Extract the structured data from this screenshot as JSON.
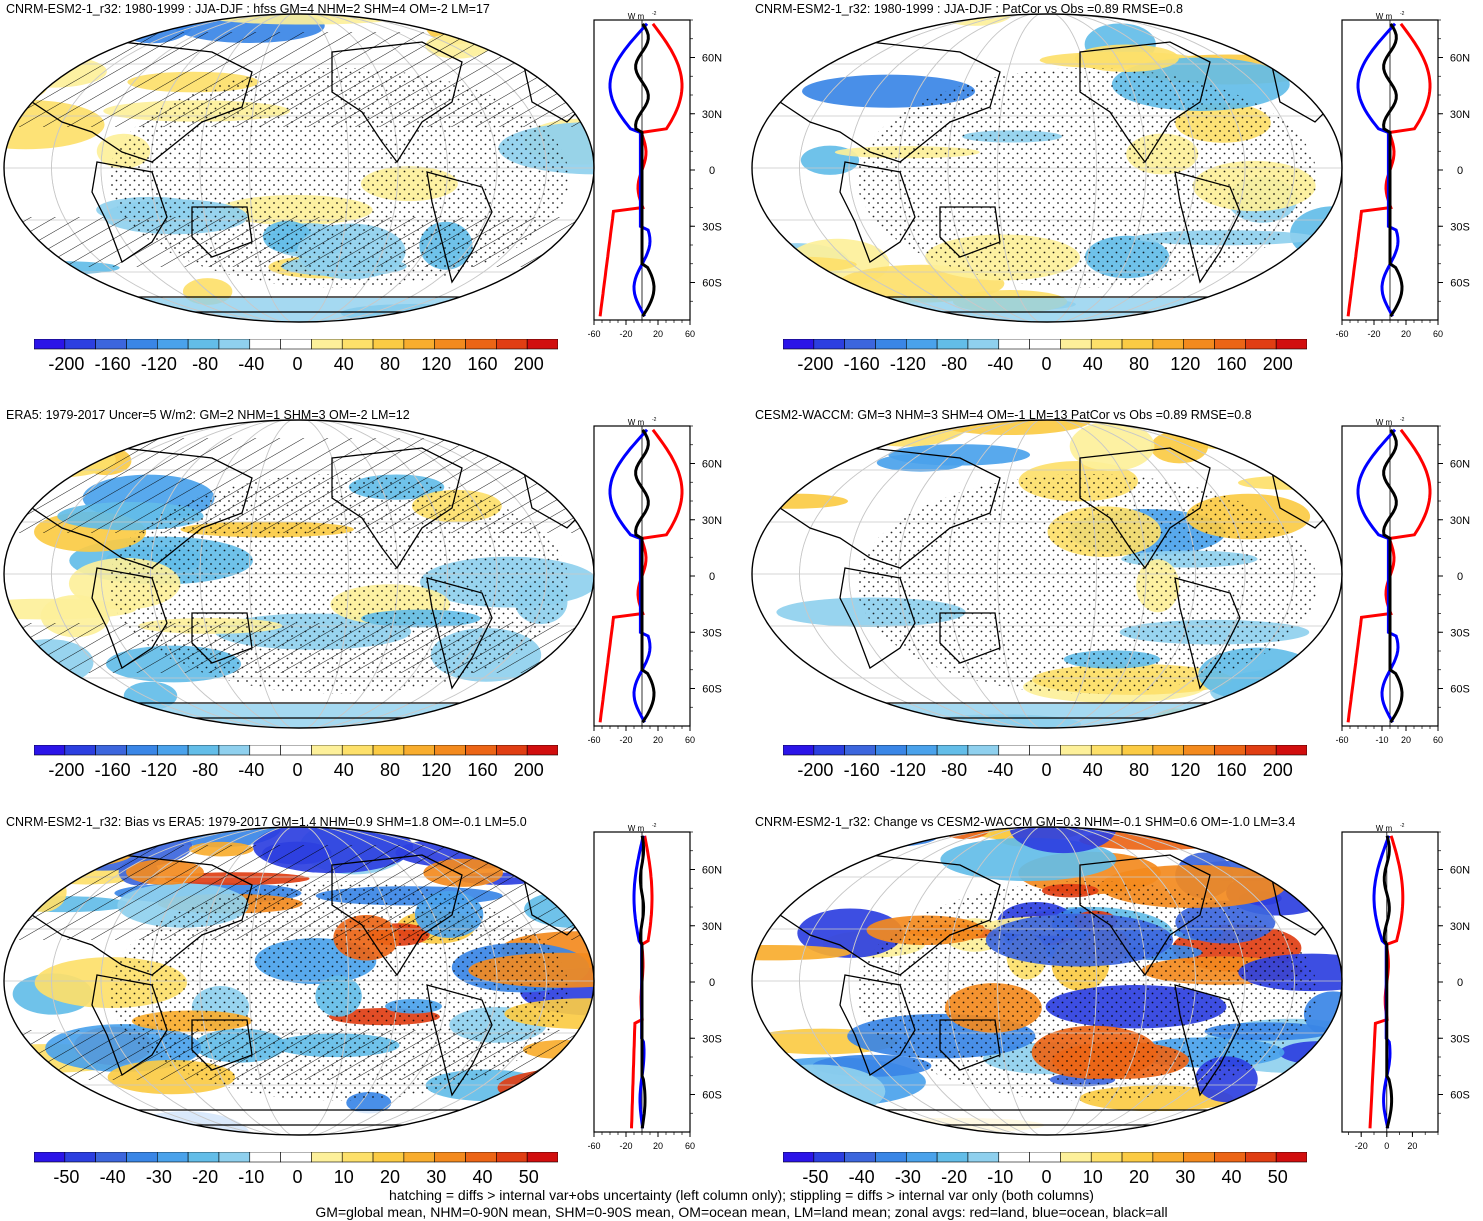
{
  "panels": [
    {
      "title": "CNRM-ESM2-1_r32: 1980-1999 : JJA-DJF : hfss GM=4 NHM=2 SHM=4 OM=-2 LM=17",
      "hatched": true,
      "zonal_xticks": [
        "-60",
        "-20",
        "20",
        "60"
      ],
      "zonal_xrange": [
        -60,
        60
      ],
      "cbar_labels": [
        "-200",
        "-160",
        "-120",
        "-80",
        "-40",
        "0",
        "40",
        "80",
        "120",
        "160",
        "200"
      ]
    },
    {
      "title": "CNRM-ESM2-1_r32: 1980-1999 : JJA-DJF : PatCor vs Obs =0.89 RMSE=0.8",
      "hatched": false,
      "zonal_xticks": [
        "-60",
        "-20",
        "20",
        "60"
      ],
      "zonal_xrange": [
        -60,
        60
      ],
      "cbar_labels": [
        "-200",
        "-160",
        "-120",
        "-80",
        "-40",
        "0",
        "40",
        "80",
        "120",
        "160",
        "200"
      ]
    },
    {
      "title": "ERA5: 1979-2017 Uncer=5 W/m2: GM=2 NHM=1 SHM=3 OM=-2 LM=12",
      "hatched": true,
      "zonal_xticks": [
        "-60",
        "-20",
        "20",
        "60"
      ],
      "zonal_xrange": [
        -60,
        60
      ],
      "cbar_labels": [
        "-200",
        "-160",
        "-120",
        "-80",
        "-40",
        "0",
        "40",
        "80",
        "120",
        "160",
        "200"
      ]
    },
    {
      "title": "CESM2-WACCM: GM=3 NHM=3 SHM=4 OM=-1 LM=13 PatCor vs Obs =0.89 RMSE=0.8",
      "hatched": false,
      "zonal_xticks": [
        "-60",
        "-10",
        "20",
        "60"
      ],
      "zonal_xrange": [
        -60,
        60
      ],
      "cbar_labels": [
        "-200",
        "-160",
        "-120",
        "-80",
        "-40",
        "0",
        "40",
        "80",
        "120",
        "160",
        "200"
      ]
    },
    {
      "title": "CNRM-ESM2-1_r32: Bias vs ERA5: 1979-2017 GM=1.4 NHM=0.9 SHM=1.8 OM=-0.1 LM=5.0",
      "hatched": true,
      "zonal_xticks": [
        "-60",
        "-20",
        "20",
        "60"
      ],
      "zonal_xrange": [
        -60,
        60
      ],
      "cbar_labels": [
        "-50",
        "-40",
        "-30",
        "-20",
        "-10",
        "0",
        "10",
        "20",
        "30",
        "40",
        "50"
      ]
    },
    {
      "title": "CNRM-ESM2-1_r32: Change vs CESM2-WACCM GM=0.3 NHM=-0.1 SHM=0.6 OM=-1.0 LM=3.4",
      "hatched": false,
      "zonal_xticks": [
        "-20",
        "0",
        "20"
      ],
      "zonal_xrange": [
        -35,
        40
      ],
      "cbar_labels": [
        "-50",
        "-40",
        "-30",
        "-20",
        "-10",
        "0",
        "10",
        "20",
        "30",
        "40",
        "50"
      ]
    }
  ],
  "zonal": {
    "units": "W m",
    "units_sup": "-2",
    "lat_ticks": [
      "60N",
      "30N",
      "0",
      "30S",
      "60S"
    ]
  },
  "colors": {
    "scale": [
      "#2b14e8",
      "#2c3fe0",
      "#3c66dd",
      "#3a86e6",
      "#4aa2eb",
      "#63bde8",
      "#8fd0ee",
      "#ffffff",
      "#ffffff",
      "#fdf09a",
      "#fde06a",
      "#fbcb44",
      "#f8ad2e",
      "#f38a1e",
      "#ec6516",
      "#e03e13",
      "#d10e0e"
    ],
    "land_line": "#ff0000",
    "ocean_line": "#0000ff",
    "all_line": "#000000"
  },
  "chart_data": [
    {
      "type": "heatmap",
      "panel": 1,
      "series": [
        {
          "name": "red=land"
        },
        {
          "name": "blue=ocean"
        },
        {
          "name": "black=all"
        }
      ]
    },
    {
      "type": "heatmap",
      "panel": 2,
      "series": [
        {
          "name": "red=land"
        },
        {
          "name": "blue=ocean"
        },
        {
          "name": "black=all"
        }
      ]
    },
    {
      "type": "heatmap",
      "panel": 3,
      "series": [
        {
          "name": "red=land"
        },
        {
          "name": "blue=ocean"
        },
        {
          "name": "black=all"
        }
      ]
    },
    {
      "type": "heatmap",
      "panel": 4,
      "series": [
        {
          "name": "red=land"
        },
        {
          "name": "blue=ocean"
        },
        {
          "name": "black=all"
        }
      ]
    },
    {
      "type": "heatmap",
      "panel": 5,
      "series": [
        {
          "name": "red=land"
        },
        {
          "name": "blue=ocean"
        },
        {
          "name": "black=all"
        }
      ]
    },
    {
      "type": "heatmap",
      "panel": 6,
      "series": [
        {
          "name": "red=land"
        },
        {
          "name": "blue=ocean"
        },
        {
          "name": "black=all"
        }
      ]
    }
  ],
  "footer": {
    "line1": "hatching = diffs > internal var+obs uncertainty (left column only); stippling = diffs > internal var only (both columns)",
    "line2": "GM=global mean, NHM=0-90N mean, SHM=0-90S mean, OM=ocean mean, LM=land mean; zonal avgs: red=land, blue=ocean, black=all"
  }
}
